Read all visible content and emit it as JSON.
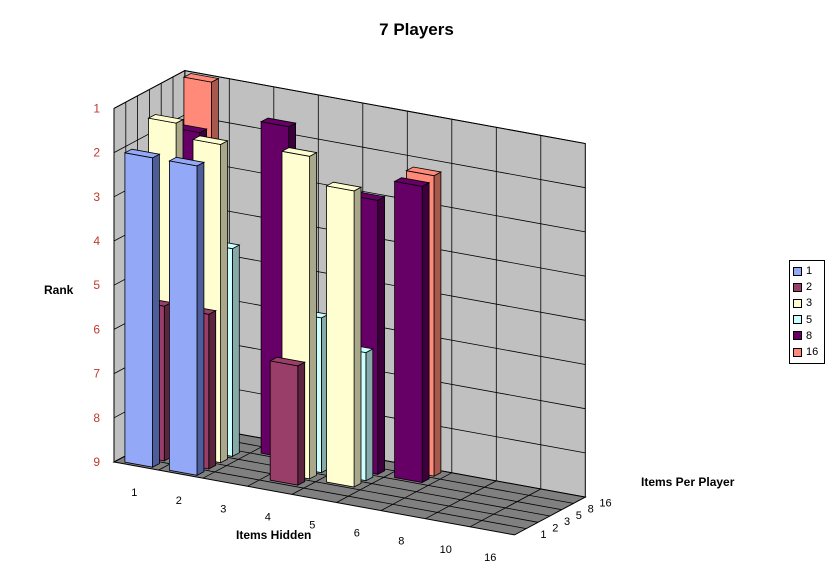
{
  "chart_data": {
    "type": "bar",
    "variant": "3d-bar",
    "title": "7 Players",
    "xlabel": "Items Hidden",
    "ylabel": "Rank",
    "zlabel": "Items Per Player",
    "x_categories": [
      "1",
      "2",
      "3",
      "4",
      "5",
      "6",
      "8",
      "10",
      "16"
    ],
    "z_categories": [
      "1",
      "2",
      "3",
      "5",
      "8",
      "16"
    ],
    "yaxis_inverted": true,
    "ylim": [
      1,
      9
    ],
    "yticks": [
      "1",
      "2",
      "3",
      "4",
      "5",
      "6",
      "7",
      "8",
      "9"
    ],
    "ytick_color": "#c0392b",
    "legend_position": "right",
    "grid": true,
    "series": [
      {
        "name": "1",
        "color": "#94a8f8",
        "side": "#4d5d9a",
        "values": [
          2,
          2,
          null,
          null,
          null,
          null,
          null,
          null,
          null
        ]
      },
      {
        "name": "2",
        "color": "#983e68",
        "side": "#5d2440",
        "values": [
          5.5,
          5.5,
          null,
          6.3,
          null,
          null,
          null,
          null,
          null
        ]
      },
      {
        "name": "3",
        "color": "#fffed0",
        "side": "#a9a88a",
        "values": [
          1.5,
          1.8,
          null,
          1.7,
          2.3,
          null,
          null,
          null,
          null
        ]
      },
      {
        "name": "5",
        "color": "#ccffff",
        "side": "#86aaaa",
        "values": [
          5.5,
          4.3,
          null,
          5.5,
          6.1,
          null,
          null,
          null,
          null
        ]
      },
      {
        "name": "8",
        "color": "#660066",
        "side": "#3d003d",
        "values": [
          2,
          null,
          1.5,
          null,
          2.8,
          2.3,
          null,
          null,
          null
        ]
      },
      {
        "name": "16",
        "color": "#ff8a7a",
        "side": "#a8574c",
        "values": [
          1,
          null,
          null,
          null,
          null,
          2.2,
          null,
          null,
          null
        ]
      }
    ]
  }
}
